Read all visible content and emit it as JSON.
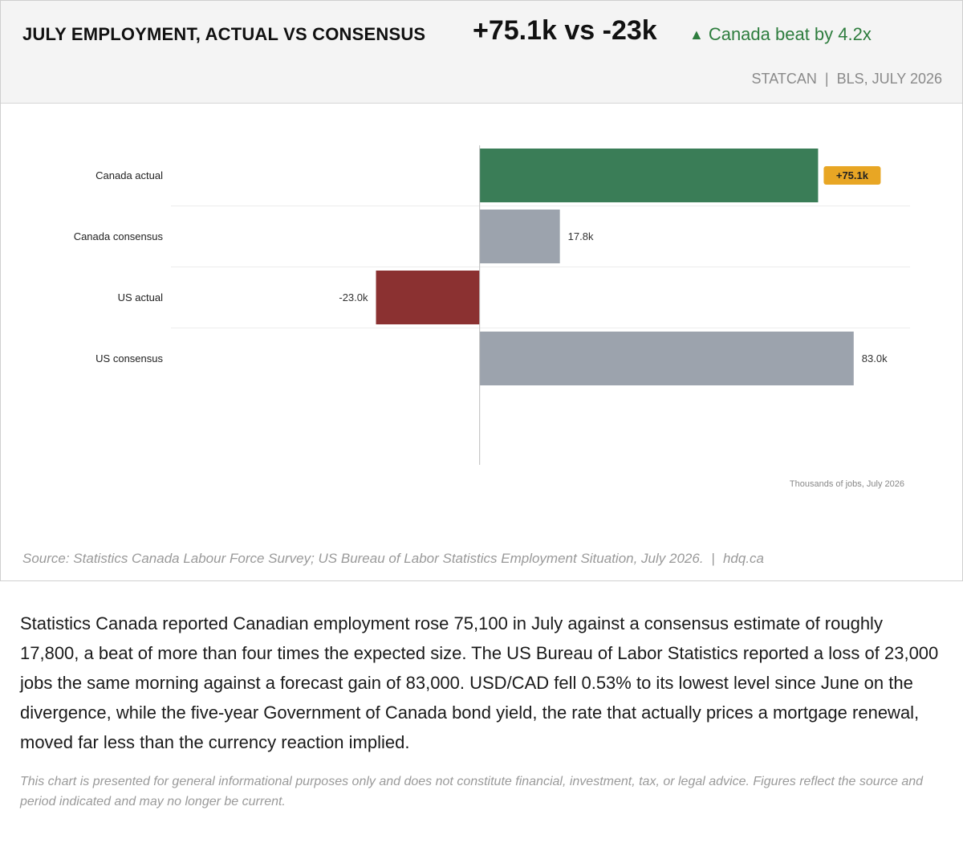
{
  "header": {
    "title": "JULY EMPLOYMENT, ACTUAL VS CONSENSUS",
    "headline": "+75.1k vs -23k",
    "beat_arrow": "▲",
    "beat_text": "Canada beat by 4.2x",
    "source_left": "STATCAN",
    "source_sep": "|",
    "source_right": "BLS, JULY 2026"
  },
  "colors": {
    "canada_actual": "#3a7d57",
    "consensus": "#9ca3ad",
    "us_actual": "#8b3131",
    "highlight_badge": "#e8a624",
    "beat_green": "#2e7d3e"
  },
  "chart_data": {
    "type": "bar",
    "orientation": "horizontal",
    "categories": [
      "Canada actual",
      "Canada consensus",
      "US actual",
      "US consensus"
    ],
    "values": [
      75.1,
      17.8,
      -23.0,
      83.0
    ],
    "value_labels": [
      "+75.1k",
      "17.8k",
      "-23.0k",
      "83.0k"
    ],
    "highlighted_category": "Canada actual",
    "xlim": [
      -68.5,
      95.5
    ],
    "unit_note": "Thousands of jobs, July 2026",
    "grid": false
  },
  "footer": {
    "source": "Source: Statistics Canada Labour Force Survey; US Bureau of Labor Statistics Employment Situation, July 2026.",
    "sep": "|",
    "site": "hdq.ca"
  },
  "article": {
    "body": "Statistics Canada reported Canadian employment rose 75,100 in July against a consensus estimate of roughly 17,800, a beat of more than four times the expected size. The US Bureau of Labor Statistics reported a loss of 23,000 jobs the same morning against a forecast gain of 83,000. USD/CAD fell 0.53% to its lowest level since June on the divergence, while the five-year Government of Canada bond yield, the rate that actually prices a mortgage renewal, moved far less than the currency reaction implied.",
    "disclaimer": "This chart is presented for general informational purposes only and does not constitute financial, investment, tax, or legal advice. Figures reflect the source and period indicated and may no longer be current."
  }
}
